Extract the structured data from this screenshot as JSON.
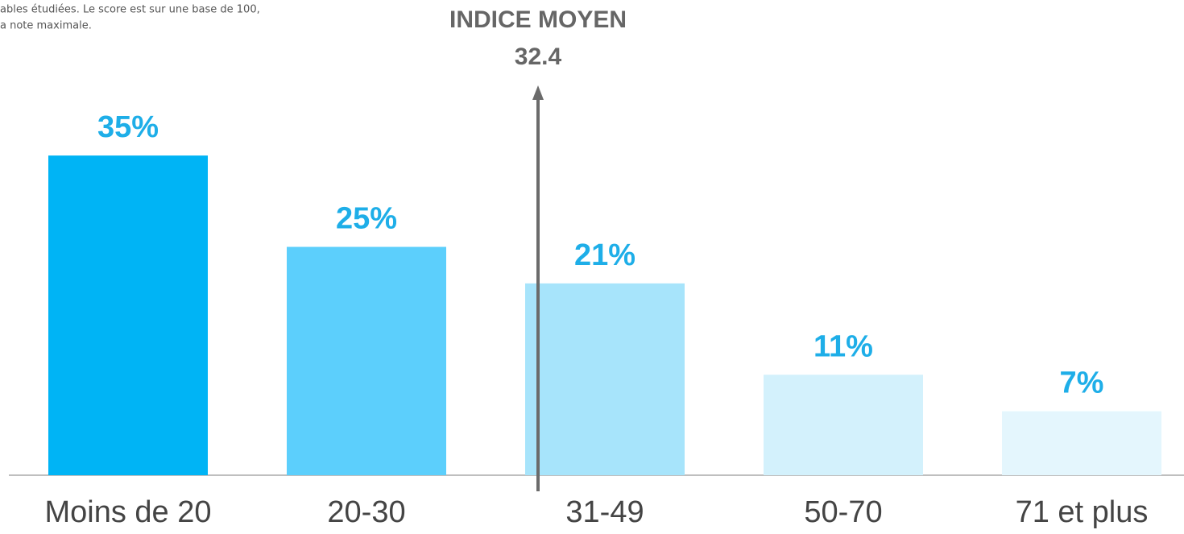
{
  "note": [
    "ables étudiées. Le score est sur une base de 100,",
    "a note maximale."
  ],
  "chart_data": {
    "type": "bar",
    "categories": [
      "Moins de 20",
      "20-30",
      "31-49",
      "50-70",
      "71 et plus"
    ],
    "values": [
      35,
      25,
      21,
      11,
      7
    ],
    "value_labels": [
      "35%",
      "25%",
      "21%",
      "11%",
      "7%"
    ],
    "colors": [
      "#00b4f5",
      "#5ccffc",
      "#a7e4fb",
      "#d3f1fc",
      "#e4f6fd"
    ],
    "annotation": {
      "title": "INDICE MOYEN",
      "value": 32.4
    }
  }
}
